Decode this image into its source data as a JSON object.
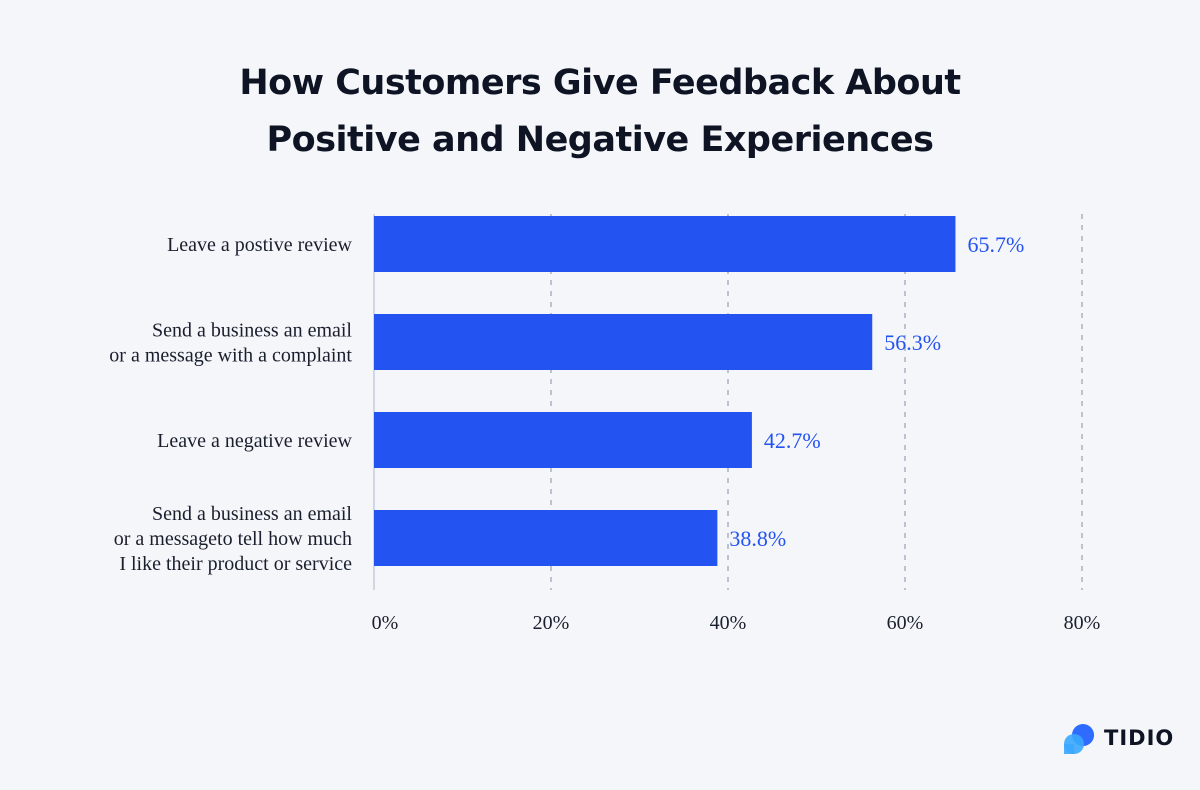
{
  "chart_data": {
    "type": "bar",
    "orientation": "horizontal",
    "title": [
      "How Customers Give Feedback About",
      "Positive and Negative Experiences"
    ],
    "categories": [
      [
        "Leave a postive review"
      ],
      [
        "Send a business an email",
        "or a message with a complaint"
      ],
      [
        "Leave a negative review"
      ],
      [
        "Send a business an email",
        "or a messageto tell how much",
        "I like their product or service"
      ]
    ],
    "values": [
      65.7,
      56.3,
      42.7,
      38.8
    ],
    "data_labels": [
      "65.7%",
      "56.3%",
      "42.7%",
      "38.8%"
    ],
    "xlim": [
      0,
      80
    ],
    "xticks": [
      0,
      20,
      40,
      60,
      80
    ],
    "xtick_labels": [
      "0%",
      "20%",
      "40%",
      "60%",
      "80%"
    ],
    "grid": "vertical dashed",
    "colors": {
      "bar": "#2353f0",
      "label": "#2353f0",
      "grid": "#a9b2c3",
      "background": "#f4f6f9"
    }
  },
  "brand": {
    "name": "TIDIO"
  }
}
